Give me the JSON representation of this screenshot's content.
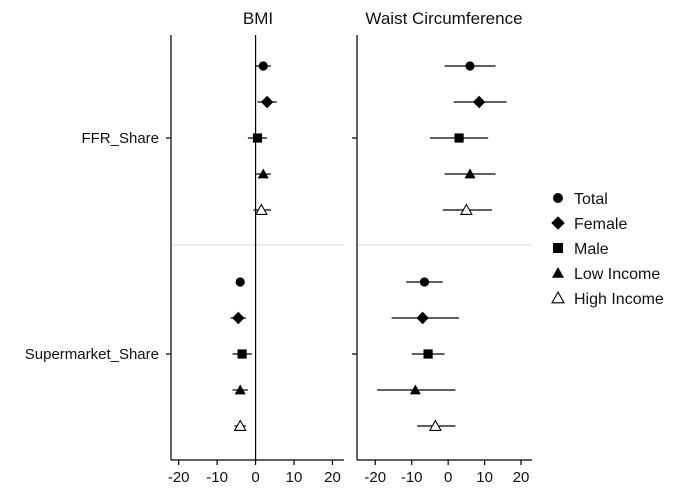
{
  "chart_data": {
    "type": "scatter",
    "subtype": "coefficient-plot",
    "row_groups": [
      "FFR_Share",
      "Supermarket_Share"
    ],
    "legend": {
      "position": "right",
      "entries": [
        {
          "name": "Total",
          "marker": "circle"
        },
        {
          "name": "Female",
          "marker": "diamond"
        },
        {
          "name": "Male",
          "marker": "square"
        },
        {
          "name": "Low Income",
          "marker": "triangle"
        },
        {
          "name": "High Income",
          "marker": "triangle-open"
        }
      ]
    },
    "panels": [
      {
        "title": "BMI",
        "xlim": [
          -22,
          23
        ],
        "xticks": [
          -20,
          -10,
          0,
          10,
          20
        ],
        "reference_line": 0,
        "groups": [
          {
            "group": "FFR_Share",
            "estimates": [
              {
                "series": "Total",
                "x": 2,
                "ci": [
                  0,
                  4
                ]
              },
              {
                "series": "Female",
                "x": 3,
                "ci": [
                  0.5,
                  5.5
                ]
              },
              {
                "series": "Male",
                "x": 0.5,
                "ci": [
                  -2,
                  3
                ]
              },
              {
                "series": "Low Income",
                "x": 2,
                "ci": [
                  0,
                  4
                ]
              },
              {
                "series": "High Income",
                "x": 1.5,
                "ci": [
                  -0.5,
                  4
                ]
              }
            ]
          },
          {
            "group": "Supermarket_Share",
            "estimates": [
              {
                "series": "Total",
                "x": -4,
                "ci": [
                  -4.5,
                  -3.5
                ]
              },
              {
                "series": "Female",
                "x": -4.5,
                "ci": [
                  -6.5,
                  -2.5
                ]
              },
              {
                "series": "Male",
                "x": -3.5,
                "ci": [
                  -6,
                  -1
                ]
              },
              {
                "series": "Low Income",
                "x": -4,
                "ci": [
                  -6,
                  -2
                ]
              },
              {
                "series": "High Income",
                "x": -4,
                "ci": [
                  -5.5,
                  -2.5
                ]
              }
            ]
          }
        ]
      },
      {
        "title": "Waist Circumference",
        "xlim": [
          -25,
          23
        ],
        "xticks": [
          -20,
          -10,
          0,
          10,
          20
        ],
        "reference_line": null,
        "groups": [
          {
            "group": "FFR_Share",
            "estimates": [
              {
                "series": "Total",
                "x": 6,
                "ci": [
                  -1,
                  13
                ]
              },
              {
                "series": "Female",
                "x": 8.5,
                "ci": [
                  1.5,
                  16
                ]
              },
              {
                "series": "Male",
                "x": 3,
                "ci": [
                  -5,
                  11
                ]
              },
              {
                "series": "Low Income",
                "x": 6,
                "ci": [
                  -1,
                  13
                ]
              },
              {
                "series": "High Income",
                "x": 5,
                "ci": [
                  -1.5,
                  12
                ]
              }
            ]
          },
          {
            "group": "Supermarket_Share",
            "estimates": [
              {
                "series": "Total",
                "x": -6.5,
                "ci": [
                  -11.5,
                  -1.5
                ]
              },
              {
                "series": "Female",
                "x": -7,
                "ci": [
                  -15.5,
                  3
                ]
              },
              {
                "series": "Male",
                "x": -5.5,
                "ci": [
                  -10,
                  -1
                ]
              },
              {
                "series": "Low Income",
                "x": -9,
                "ci": [
                  -19.5,
                  2
                ]
              },
              {
                "series": "High Income",
                "x": -3.5,
                "ci": [
                  -8.5,
                  2
                ]
              }
            ]
          }
        ]
      }
    ]
  }
}
